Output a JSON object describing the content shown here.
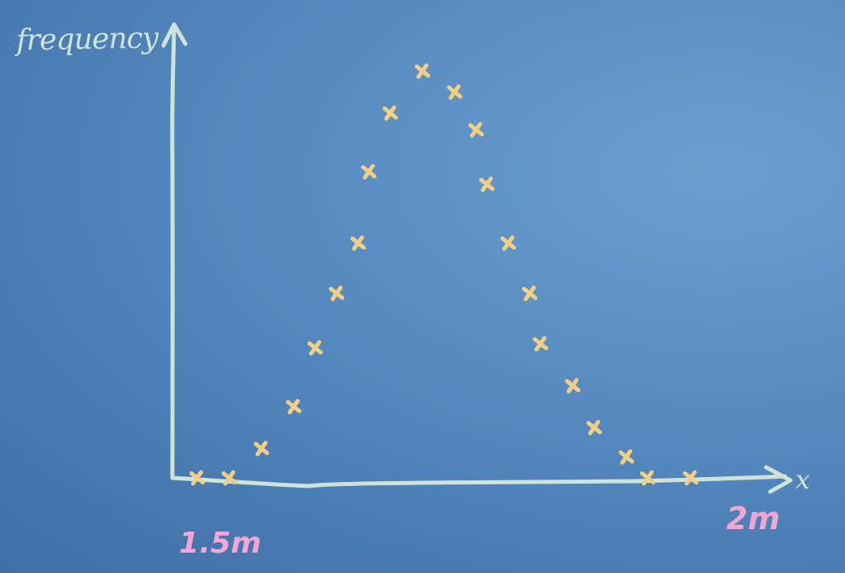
{
  "chart_data": {
    "type": "scatter",
    "title": "",
    "ylabel": "frequency",
    "xlabel": "x",
    "tick_labels": {
      "left": "1.5m",
      "right": "2m"
    },
    "xlim": [
      1.4,
      2.02
    ],
    "ylim": [
      0,
      1.0
    ],
    "marker": "x",
    "marker_color": "#f3cf86",
    "axis_color": "#cfe3d8",
    "grid": false,
    "points": [
      {
        "x": 1.47,
        "y": 0.0
      },
      {
        "x": 1.5,
        "y": 0.0
      },
      {
        "x": 1.53,
        "y": 0.07
      },
      {
        "x": 1.56,
        "y": 0.17
      },
      {
        "x": 1.58,
        "y": 0.31
      },
      {
        "x": 1.6,
        "y": 0.44
      },
      {
        "x": 1.62,
        "y": 0.56
      },
      {
        "x": 1.63,
        "y": 0.73
      },
      {
        "x": 1.65,
        "y": 0.87
      },
      {
        "x": 1.68,
        "y": 0.97
      },
      {
        "x": 1.71,
        "y": 0.92
      },
      {
        "x": 1.73,
        "y": 0.83
      },
      {
        "x": 1.74,
        "y": 0.7
      },
      {
        "x": 1.76,
        "y": 0.56
      },
      {
        "x": 1.78,
        "y": 0.44
      },
      {
        "x": 1.79,
        "y": 0.32
      },
      {
        "x": 1.82,
        "y": 0.22
      },
      {
        "x": 1.84,
        "y": 0.12
      },
      {
        "x": 1.87,
        "y": 0.05
      },
      {
        "x": 1.89,
        "y": 0.0
      },
      {
        "x": 1.93,
        "y": 0.0
      }
    ]
  }
}
